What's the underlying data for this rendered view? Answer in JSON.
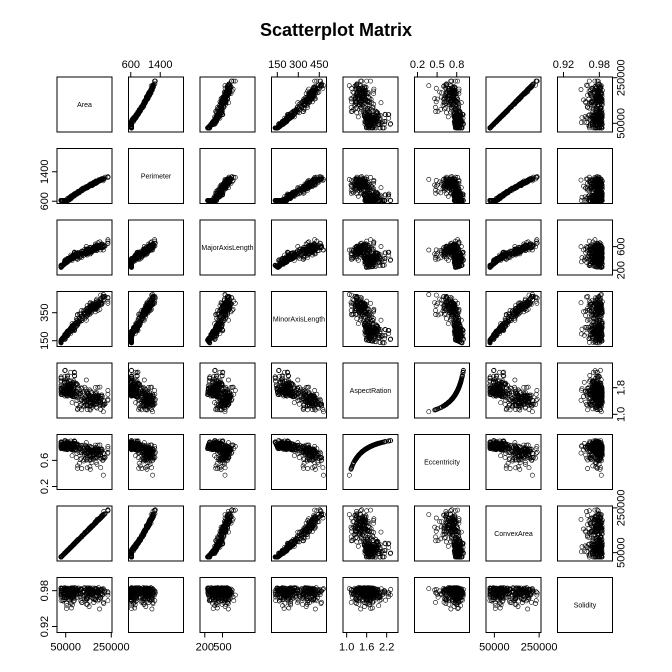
{
  "chart_data": {
    "type": "scatter",
    "title": "Scatterplot Matrix",
    "variables": [
      {
        "name": "Area",
        "min": 25000,
        "max": 240000,
        "ticks": [
          50000,
          250000
        ],
        "tick_side": "right"
      },
      {
        "name": "Perimeter",
        "min": 620,
        "max": 1950,
        "ticks": [
          600,
          1400
        ],
        "tick_side": "top"
      },
      {
        "name": "MajorAxisLength",
        "min": 170,
        "max": 1000,
        "ticks": [
          200,
          500
        ],
        "tick_side": "right"
      },
      {
        "name": "MinorAxisLength",
        "min": 130,
        "max": 480,
        "ticks": [
          150,
          300,
          450
        ],
        "tick_side": "top"
      },
      {
        "name": "AspectRation",
        "min": 0.98,
        "max": 2.45,
        "ticks": [
          1.0,
          1.8
        ],
        "tick_side": "right"
      },
      {
        "name": "Eccentricity",
        "min": 0.2,
        "max": 0.95,
        "ticks": [
          0.2,
          0.5,
          0.8
        ],
        "tick_side": "top"
      },
      {
        "name": "ConvexArea",
        "min": 26000,
        "max": 245000,
        "ticks": [
          50000,
          250000
        ],
        "tick_side": "right"
      },
      {
        "name": "Solidity",
        "min": 0.915,
        "max": 0.997,
        "ticks": [
          0.92,
          0.98
        ],
        "tick_side": "top"
      }
    ],
    "bottom_axis_labels": [
      {
        "variable": "Area",
        "ticks": [
          "50000",
          "250000"
        ]
      },
      {
        "variable": "MajorAxisLength",
        "ticks": [
          "200",
          "500"
        ]
      },
      {
        "variable": "AspectRation",
        "ticks": [
          "1.0",
          "1.6",
          "2.2"
        ]
      },
      {
        "variable": "ConvexArea",
        "ticks": [
          "50000",
          "250000"
        ]
      }
    ],
    "left_axis_labels": [
      {
        "variable": "Perimeter",
        "ticks": [
          "600",
          "1400"
        ]
      },
      {
        "variable": "MinorAxisLength",
        "ticks": [
          "150",
          "350"
        ]
      },
      {
        "variable": "Eccentricity",
        "ticks": [
          "0.2",
          "0.6"
        ]
      },
      {
        "variable": "Solidity",
        "ticks": [
          "0.92",
          "0.98"
        ]
      }
    ],
    "top_axis_labels": [
      {
        "variable": "Perimeter",
        "ticks": [
          "600",
          "1400"
        ]
      },
      {
        "variable": "MinorAxisLength",
        "ticks": [
          "150",
          "300",
          "450"
        ]
      },
      {
        "variable": "Eccentricity",
        "ticks": [
          "0.2",
          "0.5",
          "0.8"
        ]
      },
      {
        "variable": "Solidity",
        "ticks": [
          "0.92",
          "0.98"
        ]
      }
    ],
    "right_axis_labels": [
      {
        "variable": "Area",
        "ticks": [
          "50000",
          "250000"
        ]
      },
      {
        "variable": "MajorAxisLength",
        "ticks": [
          "200",
          "600"
        ]
      },
      {
        "variable": "AspectRation",
        "ticks": [
          "1.0",
          "1.8"
        ]
      },
      {
        "variable": "ConvexArea",
        "ticks": [
          "50000",
          "250000"
        ]
      }
    ],
    "point_style": "open-circle",
    "point_color": "#000000",
    "grid": false
  }
}
